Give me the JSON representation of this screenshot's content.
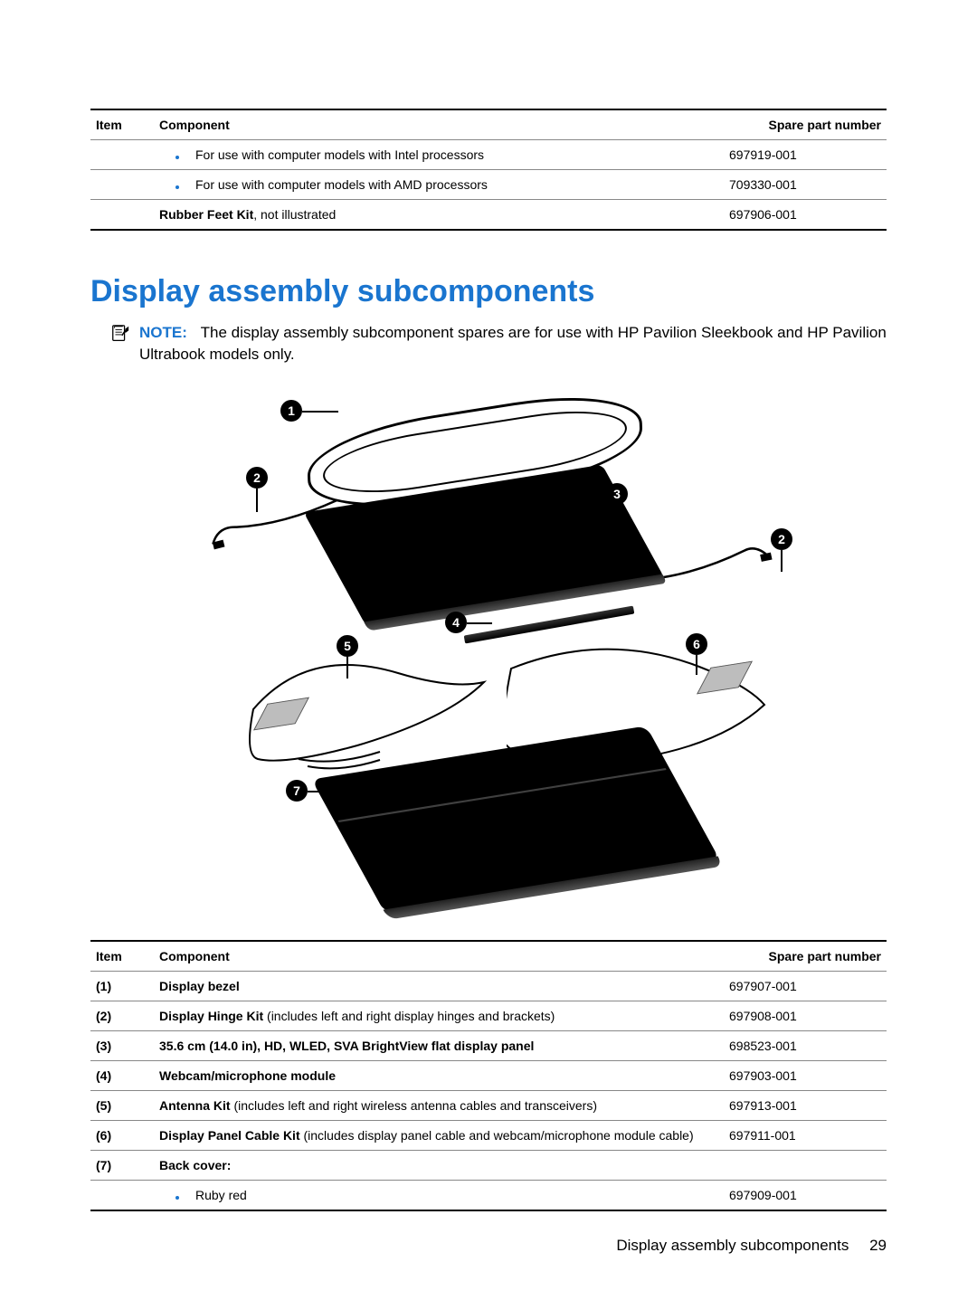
{
  "colors": {
    "accent": "#1a75cf",
    "text": "#000000",
    "rule": "#888888",
    "bg": "#ffffff"
  },
  "topTable": {
    "headers": {
      "item": "Item",
      "component": "Component",
      "part": "Spare part number"
    },
    "rows": [
      {
        "item": "",
        "bullet": true,
        "bold": "",
        "desc": "For use with computer models with Intel processors",
        "part": "697919-001"
      },
      {
        "item": "",
        "bullet": true,
        "bold": "",
        "desc": "For use with computer models with AMD processors",
        "part": "709330-001"
      },
      {
        "item": "",
        "bullet": false,
        "bold": "Rubber Feet Kit",
        "desc": ", not illustrated",
        "part": "697906-001"
      }
    ]
  },
  "section": {
    "heading": "Display assembly subcomponents",
    "note_label": "NOTE:",
    "note_text": "The display assembly subcomponent spares are for use with HP Pavilion Sleekbook and HP Pavilion Ultrabook models only."
  },
  "diagram": {
    "callouts": [
      "1",
      "2",
      "3",
      "2",
      "4",
      "5",
      "6",
      "7"
    ]
  },
  "bottomTable": {
    "headers": {
      "item": "Item",
      "component": "Component",
      "part": "Spare part number"
    },
    "rows": [
      {
        "item": "(1)",
        "bullet": false,
        "bold": "Display bezel",
        "desc": "",
        "part": "697907-001"
      },
      {
        "item": "(2)",
        "bullet": false,
        "bold": "Display Hinge Kit",
        "desc": " (includes left and right display hinges and brackets)",
        "part": "697908-001"
      },
      {
        "item": "(3)",
        "bullet": false,
        "bold": "35.6 cm (14.0 in), HD, WLED, SVA BrightView flat display panel",
        "desc": "",
        "part": "698523-001"
      },
      {
        "item": "(4)",
        "bullet": false,
        "bold": "Webcam/microphone module",
        "desc": "",
        "part": "697903-001"
      },
      {
        "item": "(5)",
        "bullet": false,
        "bold": "Antenna Kit",
        "desc": " (includes left and right wireless antenna cables and transceivers)",
        "part": "697913-001"
      },
      {
        "item": "(6)",
        "bullet": false,
        "bold": "Display Panel Cable Kit",
        "desc": " (includes display panel cable and webcam/microphone module cable)",
        "part": "697911-001"
      },
      {
        "item": "(7)",
        "bullet": false,
        "bold": "Back cover:",
        "desc": "",
        "part": ""
      },
      {
        "item": "",
        "bullet": true,
        "bold": "",
        "desc": "Ruby red",
        "part": "697909-001"
      }
    ]
  },
  "footer": {
    "label": "Display assembly subcomponents",
    "page": "29"
  }
}
